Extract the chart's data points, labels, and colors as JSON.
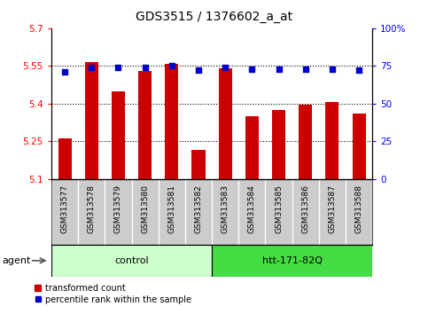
{
  "title": "GDS3515 / 1376602_a_at",
  "samples": [
    "GSM313577",
    "GSM313578",
    "GSM313579",
    "GSM313580",
    "GSM313581",
    "GSM313582",
    "GSM313583",
    "GSM313584",
    "GSM313585",
    "GSM313586",
    "GSM313587",
    "GSM313588"
  ],
  "bar_values": [
    5.26,
    5.565,
    5.45,
    5.53,
    5.56,
    5.215,
    5.54,
    5.35,
    5.375,
    5.395,
    5.405,
    5.36
  ],
  "percentile_values": [
    71,
    74,
    74,
    74,
    75,
    72,
    74,
    73,
    73,
    73,
    73,
    72
  ],
  "ylim_left": [
    5.1,
    5.7
  ],
  "ylim_right": [
    0,
    100
  ],
  "yticks_left": [
    5.1,
    5.25,
    5.4,
    5.55,
    5.7
  ],
  "yticks_right": [
    0,
    25,
    50,
    75,
    100
  ],
  "ytick_labels_left": [
    "5.1",
    "5.25",
    "5.4",
    "5.55",
    "5.7"
  ],
  "ytick_labels_right": [
    "0",
    "25",
    "50",
    "75",
    "100%"
  ],
  "bar_color": "#cc0000",
  "dot_color": "#0000cc",
  "control_samples": 6,
  "control_label": "control",
  "treatment_label": "htt-171-82Q",
  "agent_label": "agent",
  "control_bg": "#ccffcc",
  "treatment_bg": "#44dd44",
  "sample_bg": "#cccccc",
  "legend_bar_label": "transformed count",
  "legend_dot_label": "percentile rank within the sample",
  "bar_width": 0.5,
  "base_value": 5.1,
  "title_fontsize": 10,
  "tick_fontsize": 7.5,
  "label_fontsize": 7.5
}
